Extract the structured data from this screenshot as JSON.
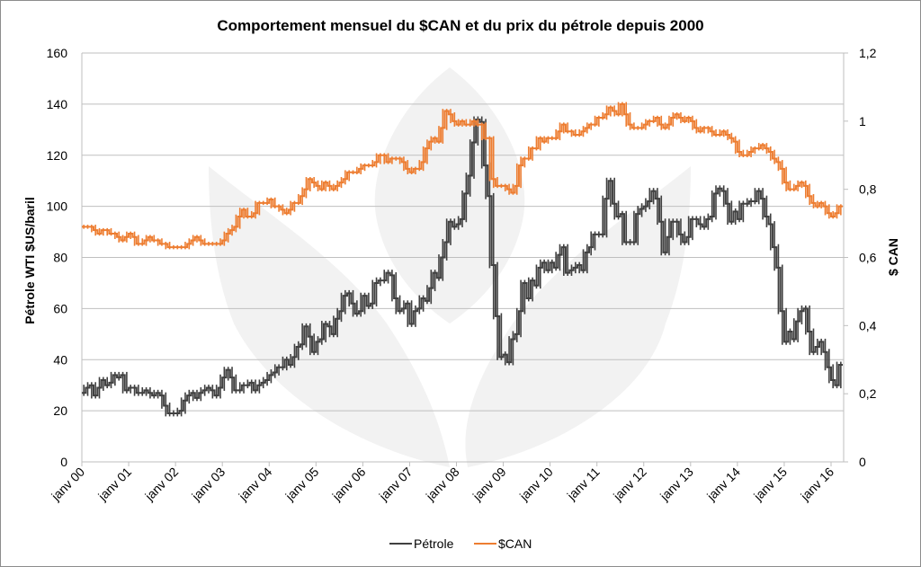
{
  "chart_data": {
    "type": "line",
    "title": "Comportement mensuel du $CAN et du prix du pétrole depuis 2000",
    "xlabel": "",
    "ylabel": "Pétrole WTI $US/baril",
    "y2label": "$ CAN",
    "ylim": [
      0,
      160
    ],
    "y2lim": [
      0,
      1.2
    ],
    "yticks": [
      "0",
      "20",
      "40",
      "60",
      "80",
      "100",
      "120",
      "140",
      "160"
    ],
    "y2ticks": [
      "0",
      "0,2",
      "0,4",
      "0,6",
      "0,8",
      "1",
      "1,2"
    ],
    "xticks": [
      "janv 00",
      "janv 01",
      "janv 02",
      "janv 03",
      "janv 04",
      "janv 05",
      "janv 06",
      "janv 07",
      "janv 08",
      "janv 09",
      "janv 10",
      "janv 11",
      "janv 12",
      "janv 13",
      "janv 14",
      "janv 15",
      "janv 16"
    ],
    "grid": true,
    "legend_position": "bottom",
    "x_start": "janv 00",
    "x_frequency": "monthly",
    "colors": {
      "petrole": "#404040",
      "cad": "#ed7d31",
      "grid": "#bfbfbf",
      "watermark": "#f2f2f2"
    },
    "series": [
      {
        "name": "Pétrole",
        "axis": "left",
        "values": [
          27,
          29,
          30,
          26,
          29,
          32,
          30,
          31,
          34,
          33,
          34,
          28,
          29,
          29,
          27,
          27,
          28,
          27,
          26,
          27,
          26,
          22,
          19,
          19,
          19,
          20,
          24,
          26,
          27,
          25,
          27,
          28,
          29,
          28,
          26,
          29,
          33,
          36,
          33,
          28,
          28,
          30,
          30,
          31,
          28,
          30,
          31,
          32,
          34,
          35,
          37,
          37,
          40,
          38,
          41,
          45,
          46,
          53,
          49,
          43,
          47,
          48,
          54,
          53,
          50,
          56,
          59,
          65,
          66,
          62,
          58,
          59,
          65,
          61,
          62,
          70,
          71,
          71,
          74,
          73,
          64,
          59,
          60,
          62,
          54,
          59,
          60,
          64,
          63,
          68,
          74,
          72,
          80,
          86,
          94,
          92,
          93,
          95,
          105,
          112,
          125,
          134,
          133,
          116,
          104,
          77,
          57,
          41,
          42,
          39,
          48,
          50,
          59,
          70,
          64,
          71,
          69,
          76,
          78,
          75,
          78,
          76,
          81,
          84,
          74,
          75,
          76,
          77,
          75,
          82,
          84,
          89,
          89,
          89,
          103,
          110,
          101,
          96,
          97,
          86,
          86,
          86,
          97,
          99,
          100,
          102,
          106,
          103,
          94,
          82,
          88,
          94,
          94,
          89,
          86,
          88,
          95,
          95,
          93,
          92,
          95,
          96,
          105,
          107,
          106,
          101,
          94,
          98,
          95,
          101,
          101,
          102,
          102,
          106,
          103,
          96,
          93,
          84,
          76,
          59,
          47,
          51,
          48,
          55,
          59,
          60,
          51,
          43,
          45,
          47,
          43,
          37,
          32,
          30,
          38
        ]
      },
      {
        "name": "$CAN",
        "axis": "right",
        "values": [
          0.69,
          0.69,
          0.69,
          0.68,
          0.67,
          0.68,
          0.68,
          0.67,
          0.67,
          0.66,
          0.65,
          0.66,
          0.67,
          0.66,
          0.64,
          0.64,
          0.65,
          0.66,
          0.65,
          0.65,
          0.64,
          0.64,
          0.63,
          0.63,
          0.63,
          0.63,
          0.63,
          0.64,
          0.65,
          0.66,
          0.65,
          0.64,
          0.64,
          0.64,
          0.64,
          0.64,
          0.65,
          0.67,
          0.68,
          0.69,
          0.72,
          0.74,
          0.72,
          0.72,
          0.73,
          0.76,
          0.76,
          0.76,
          0.77,
          0.75,
          0.75,
          0.74,
          0.73,
          0.74,
          0.76,
          0.76,
          0.78,
          0.8,
          0.83,
          0.82,
          0.81,
          0.8,
          0.82,
          0.81,
          0.8,
          0.81,
          0.82,
          0.83,
          0.85,
          0.85,
          0.85,
          0.86,
          0.87,
          0.87,
          0.87,
          0.88,
          0.9,
          0.9,
          0.88,
          0.89,
          0.89,
          0.89,
          0.88,
          0.86,
          0.85,
          0.86,
          0.86,
          0.88,
          0.92,
          0.94,
          0.95,
          0.94,
          0.98,
          1.03,
          1.02,
          1.0,
          0.99,
          1.0,
          0.99,
          0.99,
          1.0,
          0.99,
          0.99,
          0.95,
          0.95,
          0.83,
          0.81,
          0.81,
          0.81,
          0.8,
          0.79,
          0.81,
          0.87,
          0.89,
          0.89,
          0.92,
          0.92,
          0.95,
          0.94,
          0.95,
          0.95,
          0.95,
          0.97,
          0.99,
          0.97,
          0.97,
          0.96,
          0.96,
          0.97,
          0.98,
          0.99,
          0.99,
          1.01,
          1.01,
          1.02,
          1.04,
          1.03,
          1.02,
          1.05,
          1.02,
          0.99,
          0.98,
          0.98,
          0.98,
          0.99,
          1.0,
          1.0,
          1.01,
          0.99,
          0.98,
          0.99,
          1.01,
          1.02,
          1.01,
          1.0,
          1.01,
          1.0,
          0.98,
          0.97,
          0.98,
          0.98,
          0.97,
          0.96,
          0.96,
          0.97,
          0.96,
          0.95,
          0.94,
          0.91,
          0.9,
          0.9,
          0.91,
          0.92,
          0.92,
          0.93,
          0.92,
          0.91,
          0.89,
          0.88,
          0.86,
          0.82,
          0.8,
          0.8,
          0.81,
          0.82,
          0.81,
          0.78,
          0.76,
          0.75,
          0.76,
          0.75,
          0.73,
          0.72,
          0.73,
          0.75
        ]
      }
    ]
  },
  "legend": {
    "items": [
      {
        "label": "Pétrole",
        "color": "#404040"
      },
      {
        "label": "$CAN",
        "color": "#ed7d31"
      }
    ]
  }
}
